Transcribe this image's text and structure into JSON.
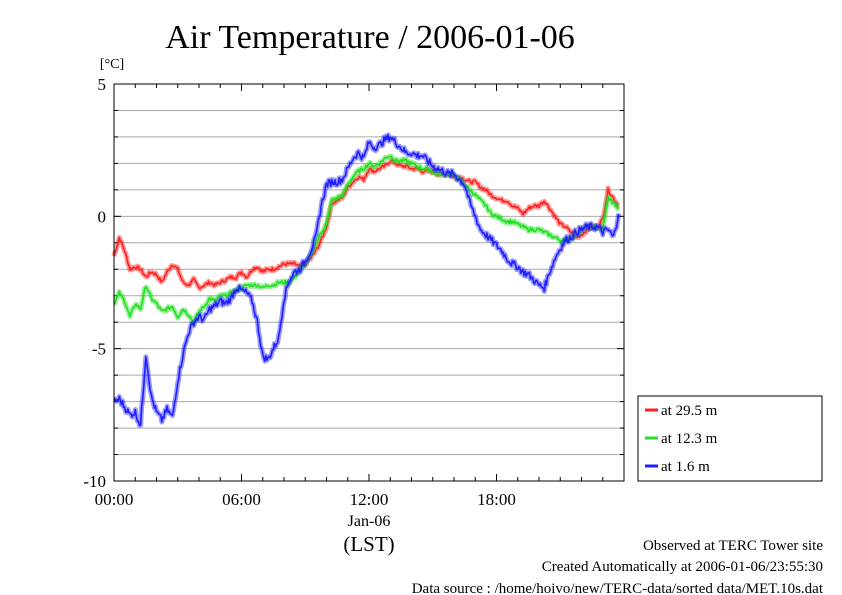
{
  "chart_data": {
    "type": "line",
    "title": "Air Temperature / 2006-01-06",
    "ylabel": "[°C]",
    "xlabel": "(LST)",
    "date_label": "Jan-06",
    "xlim": [
      0,
      24
    ],
    "ylim": [
      -10,
      5
    ],
    "x_ticks": [
      {
        "value": 0,
        "label": "00:00"
      },
      {
        "value": 6,
        "label": "06:00"
      },
      {
        "value": 12,
        "label": "12:00"
      },
      {
        "value": 18,
        "label": "18:00"
      }
    ],
    "y_ticks": [
      {
        "value": 5,
        "label": "5"
      },
      {
        "value": 0,
        "label": "0"
      },
      {
        "value": -5,
        "label": "-5"
      },
      {
        "value": -10,
        "label": "-10"
      }
    ],
    "y_grid_step": 1,
    "grid": "horizontal",
    "legend_position": "right",
    "x": [
      0.0,
      0.25,
      0.5,
      0.75,
      1.0,
      1.25,
      1.5,
      1.75,
      2.0,
      2.25,
      2.5,
      2.75,
      3.0,
      3.25,
      3.5,
      3.75,
      4.0,
      4.25,
      4.5,
      4.75,
      5.0,
      5.25,
      5.5,
      5.75,
      6.0,
      6.25,
      6.5,
      6.75,
      7.0,
      7.25,
      7.5,
      7.75,
      8.0,
      8.25,
      8.5,
      8.75,
      9.0,
      9.25,
      9.5,
      9.75,
      10.0,
      10.25,
      10.5,
      10.75,
      11.0,
      11.25,
      11.5,
      11.75,
      12.0,
      12.25,
      12.5,
      12.75,
      13.0,
      13.25,
      13.5,
      13.75,
      14.0,
      14.25,
      14.5,
      14.75,
      15.0,
      15.25,
      15.5,
      15.75,
      16.0,
      16.25,
      16.5,
      16.75,
      17.0,
      17.25,
      17.5,
      17.75,
      18.0,
      18.25,
      18.5,
      18.75,
      19.0,
      19.25,
      19.5,
      19.75,
      20.0,
      20.25,
      20.5,
      20.75,
      21.0,
      21.25,
      21.5,
      21.75,
      22.0,
      22.25,
      22.5,
      22.75,
      23.0,
      23.25,
      23.5,
      23.75
    ],
    "series": [
      {
        "name": "at 29.5 m",
        "color": "#ff2020",
        "values": [
          -1.5,
          -0.8,
          -1.3,
          -2.0,
          -1.9,
          -2.0,
          -2.3,
          -2.1,
          -2.2,
          -2.5,
          -2.1,
          -1.8,
          -2.0,
          -2.5,
          -2.6,
          -2.4,
          -2.7,
          -2.6,
          -2.5,
          -2.6,
          -2.5,
          -2.4,
          -2.3,
          -2.3,
          -2.1,
          -2.3,
          -2.0,
          -1.9,
          -2.1,
          -2.0,
          -2.0,
          -1.9,
          -1.8,
          -1.8,
          -1.8,
          -1.9,
          -1.8,
          -1.6,
          -1.3,
          -0.9,
          -0.4,
          0.5,
          0.6,
          0.7,
          1.1,
          1.3,
          1.5,
          1.4,
          1.8,
          1.7,
          1.8,
          1.9,
          2.1,
          2.0,
          1.9,
          1.9,
          1.8,
          1.8,
          1.7,
          1.7,
          1.7,
          1.6,
          1.6,
          1.6,
          1.5,
          1.5,
          1.4,
          1.3,
          1.3,
          1.1,
          1.0,
          0.8,
          0.7,
          0.6,
          0.6,
          0.4,
          0.3,
          0.1,
          0.3,
          0.4,
          0.4,
          0.6,
          0.3,
          0.0,
          -0.3,
          -0.4,
          -0.6,
          -0.8,
          -0.7,
          -0.5,
          -0.4,
          -0.4,
          -0.1,
          1.0,
          0.7,
          0.4
        ]
      },
      {
        "name": "at 12.3 m",
        "color": "#20e020",
        "values": [
          -3.3,
          -2.9,
          -3.2,
          -3.8,
          -3.3,
          -3.5,
          -2.6,
          -3.1,
          -3.3,
          -3.6,
          -3.5,
          -3.4,
          -3.8,
          -3.5,
          -3.7,
          -4.0,
          -3.6,
          -3.4,
          -3.1,
          -3.2,
          -3.0,
          -3.0,
          -2.9,
          -2.8,
          -2.7,
          -2.6,
          -2.6,
          -2.6,
          -2.7,
          -2.6,
          -2.6,
          -2.5,
          -2.5,
          -2.5,
          -2.3,
          -2.0,
          -1.8,
          -1.5,
          -1.0,
          -0.6,
          -0.3,
          0.6,
          0.7,
          0.8,
          1.2,
          1.5,
          1.7,
          1.8,
          2.0,
          1.9,
          2.0,
          2.2,
          2.3,
          2.1,
          2.1,
          2.1,
          2.0,
          1.9,
          1.8,
          1.8,
          1.7,
          1.6,
          1.6,
          1.6,
          1.5,
          1.4,
          1.2,
          1.0,
          0.8,
          0.6,
          0.4,
          0.1,
          0.0,
          -0.1,
          -0.2,
          -0.2,
          -0.3,
          -0.4,
          -0.5,
          -0.5,
          -0.5,
          -0.6,
          -0.7,
          -0.8,
          -0.9,
          -0.9,
          -0.8,
          -0.7,
          -0.5,
          -0.4,
          -0.4,
          -0.4,
          -0.5,
          0.7,
          0.5,
          0.3
        ]
      },
      {
        "name": "at 1.6 m",
        "color": "#2020ff",
        "values": [
          -7.0,
          -6.9,
          -7.2,
          -7.5,
          -7.4,
          -7.9,
          -5.2,
          -6.8,
          -7.4,
          -7.7,
          -7.3,
          -7.6,
          -6.2,
          -5.2,
          -4.4,
          -4.0,
          -3.8,
          -3.9,
          -3.5,
          -3.4,
          -3.2,
          -3.3,
          -3.1,
          -2.7,
          -2.8,
          -2.9,
          -3.2,
          -4.0,
          -5.3,
          -5.4,
          -5.0,
          -4.6,
          -3.1,
          -2.4,
          -2.1,
          -2.0,
          -1.7,
          -1.3,
          -0.8,
          0.4,
          1.2,
          1.3,
          1.3,
          1.4,
          1.8,
          2.2,
          2.4,
          2.2,
          2.8,
          2.6,
          2.7,
          2.9,
          3.0,
          2.8,
          2.6,
          2.4,
          2.4,
          2.3,
          2.3,
          2.1,
          1.9,
          1.8,
          1.7,
          1.6,
          1.6,
          1.4,
          1.2,
          0.5,
          0.0,
          -0.5,
          -0.7,
          -0.9,
          -1.1,
          -1.3,
          -1.6,
          -1.8,
          -1.9,
          -2.1,
          -2.2,
          -2.4,
          -2.6,
          -2.7,
          -2.1,
          -1.6,
          -1.2,
          -0.9,
          -0.8,
          -0.6,
          -0.5,
          -0.4,
          -0.4,
          -0.4,
          -0.6,
          -0.5,
          -0.8,
          0.1
        ]
      }
    ]
  },
  "footer": {
    "site": "Observed at TERC Tower site",
    "created": "Created Automatically at 2006-01-06/23:55:30",
    "source": "Data source : /home/hoivo/new/TERC-data/sorted data/MET.10s.dat"
  }
}
